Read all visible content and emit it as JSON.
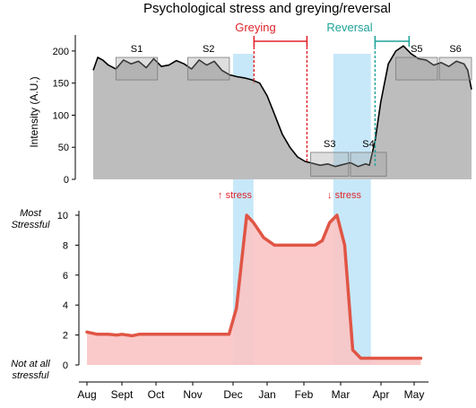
{
  "title": "Psychological stress and greying/reversal",
  "colors": {
    "intensity_fill": "#bdbdbd",
    "intensity_line": "#000000",
    "sample_box": "#a0a0a0",
    "stress_fill": "#f9c4c4",
    "stress_line": "#e05545",
    "band": "#b9e2f7",
    "greying": "#e0252b",
    "reversal": "#1fa39a"
  },
  "annotations": {
    "greying": "Greying",
    "reversal": "Reversal",
    "stress_up": "↑ stress",
    "stress_down": "↓ stress"
  },
  "chart_data": [
    {
      "type": "area",
      "title": "Psychological stress and greying/reversal",
      "ylabel": "Intensity (A.U.)",
      "xlabel": "",
      "x_unit": "position along hair shaft (0 = Aug, 1 = May)",
      "ylim": [
        0,
        225
      ],
      "yticks": [
        0,
        50,
        100,
        150,
        200
      ],
      "grid": false,
      "x": [
        0,
        0.012,
        0.025,
        0.04,
        0.06,
        0.08,
        0.1,
        0.12,
        0.14,
        0.16,
        0.18,
        0.2,
        0.22,
        0.24,
        0.26,
        0.28,
        0.3,
        0.32,
        0.34,
        0.36,
        0.38,
        0.4,
        0.42,
        0.44,
        0.46,
        0.48,
        0.5,
        0.52,
        0.54,
        0.56,
        0.58,
        0.6,
        0.62,
        0.64,
        0.66,
        0.68,
        0.7,
        0.72,
        0.73,
        0.745,
        0.76,
        0.78,
        0.8,
        0.82,
        0.84,
        0.86,
        0.88,
        0.9,
        0.92,
        0.94,
        0.96,
        0.98,
        0.99,
        1.0
      ],
      "values": [
        170,
        190,
        186,
        178,
        172,
        186,
        180,
        184,
        174,
        188,
        176,
        178,
        185,
        180,
        172,
        186,
        178,
        184,
        170,
        163,
        160,
        158,
        155,
        150,
        130,
        100,
        70,
        50,
        35,
        28,
        25,
        22,
        24,
        20,
        23,
        26,
        20,
        24,
        22,
        60,
        120,
        180,
        200,
        208,
        196,
        188,
        186,
        178,
        182,
        176,
        184,
        180,
        170,
        140
      ],
      "sample_boxes": [
        {
          "label": "S1",
          "x0": 0.06,
          "x1": 0.17,
          "ylow": 155,
          "yhigh": 190
        },
        {
          "label": "S2",
          "x0": 0.25,
          "x1": 0.36,
          "ylow": 155,
          "yhigh": 190
        },
        {
          "label": "S3",
          "x0": 0.575,
          "x1": 0.675,
          "ylow": 5,
          "yhigh": 42
        },
        {
          "label": "S4",
          "x0": 0.68,
          "x1": 0.775,
          "ylow": 5,
          "yhigh": 42
        },
        {
          "label": "S5",
          "x0": 0.8,
          "x1": 0.91,
          "ylow": 155,
          "yhigh": 190
        },
        {
          "label": "S6",
          "x0": 0.915,
          "x1": 1.0,
          "ylow": 155,
          "yhigh": 190
        }
      ],
      "greying_range": [
        0.425,
        0.565
      ],
      "reversal_range": [
        0.745,
        0.835
      ]
    },
    {
      "type": "area",
      "ylabel": "",
      "xlabel": "",
      "categories": [
        "Aug",
        "Sept",
        "Oct",
        "Nov",
        "Dec",
        "Jan",
        "Feb",
        "Mar",
        "Apr",
        "May"
      ],
      "ylim": [
        0,
        10
      ],
      "yticks": [
        0,
        2,
        4,
        6,
        8,
        10
      ],
      "ytick_text": {
        "top": [
          "Most",
          "Stressful"
        ],
        "bottom": [
          "Not at all",
          "stressful"
        ]
      },
      "grid": false,
      "x": [
        0,
        0.3,
        0.5,
        0.6,
        0.85,
        1,
        1.3,
        1.5,
        1.8,
        2,
        2.5,
        3,
        3.6,
        3.9,
        4.1,
        4.4,
        4.6,
        4.9,
        5.2,
        5.5,
        6,
        6.3,
        6.5,
        6.7,
        6.9,
        7.1,
        7.3,
        7.5,
        8,
        8.5,
        9,
        9.2
      ],
      "values": [
        2.2,
        2.05,
        2.05,
        2.05,
        2.0,
        2.05,
        1.95,
        2.05,
        2.05,
        2.05,
        2.05,
        2.05,
        2.05,
        2.05,
        3.8,
        10,
        9.5,
        8.5,
        8.0,
        8.0,
        8.0,
        8.0,
        8.3,
        9.5,
        10,
        8.0,
        1.0,
        0.45,
        0.45,
        0.45,
        0.45,
        0.45
      ],
      "stress_bands": [
        [
          4.0,
          4.6
        ],
        [
          6.8,
          7.75
        ]
      ]
    }
  ]
}
